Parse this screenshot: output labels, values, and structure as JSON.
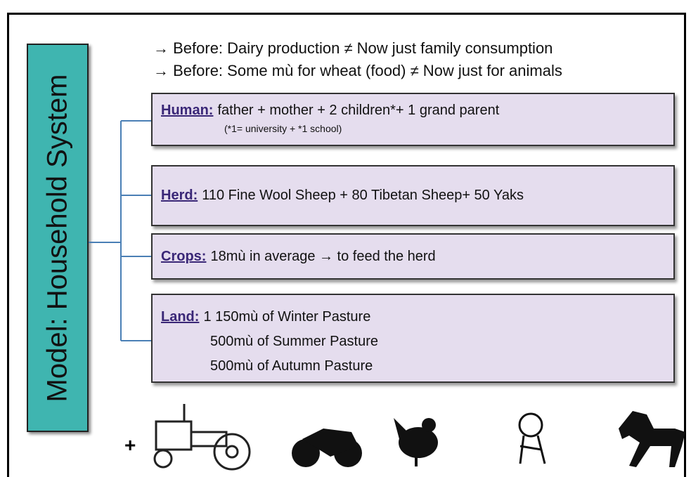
{
  "side_label": "Model: Household System",
  "notes": [
    "→ Before: Dairy production ≠ Now just family consumption",
    "→ Before: Some mù for wheat (food) ≠ Now just for animals"
  ],
  "boxes": [
    {
      "label": "Human:",
      "text": "father + mother + 2 children*+ 1 grand parent",
      "sub": "(*1= university + *1 school)"
    },
    {
      "label": "Herd:",
      "text": "110 Fine Wool Sheep + 80 Tibetan Sheep+ 50 Yaks"
    },
    {
      "label": "Crops:",
      "text": "18mù in average → to feed the herd"
    },
    {
      "label": "Land:",
      "lines": [
        "1 150mù of Winter Pasture",
        "500mù of Summer Pasture",
        "500mù of Autumn Pasture"
      ]
    }
  ],
  "plus": "+"
}
